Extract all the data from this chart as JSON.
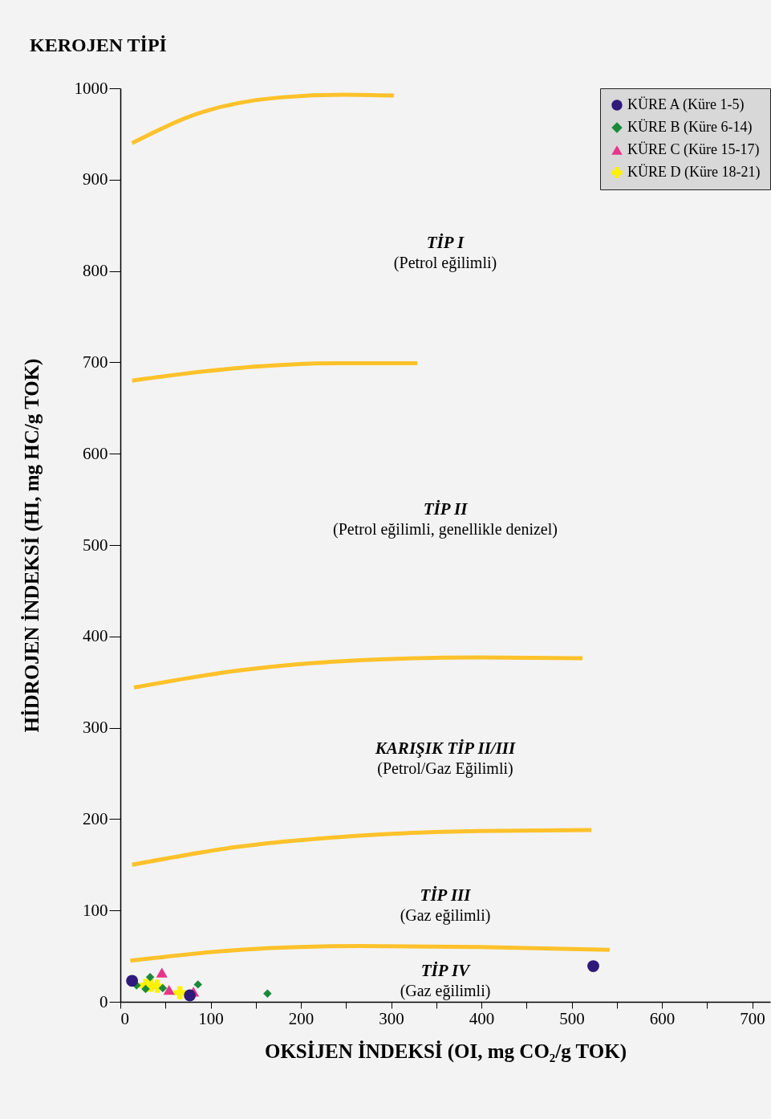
{
  "chart_data": {
    "type": "scatter",
    "title": "KEROJEN TİPİ",
    "xlabel": "OKSİJEN İNDEKSİ (OI, mg CO₂/g TOK)",
    "ylabel": "HİDROJEN İNDEKSİ (HI, mg HC/g TOK)",
    "xlim": [
      0,
      720
    ],
    "ylim": [
      0,
      1000
    ],
    "xticks": [
      0,
      {
        "value": 50,
        "label": null
      },
      100,
      {
        "value": 150,
        "label": null
      },
      200,
      {
        "value": 250,
        "label": null
      },
      300,
      {
        "value": 350,
        "label": null
      },
      400,
      {
        "value": 450,
        "label": null
      },
      500,
      {
        "value": 550,
        "label": null
      },
      600,
      {
        "value": 650,
        "label": null
      },
      700
    ],
    "yticks": [
      0,
      100,
      200,
      300,
      400,
      500,
      600,
      700,
      800,
      900,
      1000
    ],
    "grid": false,
    "legend": "top right",
    "series": [
      {
        "type": "line",
        "color": "#fdc12a",
        "x": [
          13,
          88,
          177,
          248,
          303
        ],
        "values": [
          940,
          973,
          990,
          993,
          992
        ]
      },
      {
        "type": "line",
        "color": "#fdc12a",
        "x": [
          13,
          133,
          239,
          329
        ],
        "values": [
          680,
          694,
          699,
          699
        ]
      },
      {
        "type": "line",
        "color": "#fdc12a",
        "x": [
          15,
          133,
          265,
          398,
          512
        ],
        "values": [
          344,
          363,
          374,
          377,
          376
        ]
      },
      {
        "type": "line",
        "color": "#fdc12a",
        "x": [
          13,
          133,
          265,
          398,
          522
        ],
        "values": [
          150,
          170,
          182,
          187,
          188
        ]
      },
      {
        "type": "line",
        "color": "#fdc12a",
        "x": [
          11,
          133,
          265,
          398,
          542
        ],
        "values": [
          45,
          57,
          61,
          60,
          57
        ]
      },
      {
        "name": "KÜRE A (Küre 1-5)",
        "color": "#2e1a7a",
        "marker": "circle",
        "x": [
          13,
          77,
          524
        ],
        "values": [
          23,
          7,
          39
        ]
      },
      {
        "name": "KÜRE B (Küre 6-14)",
        "color": "#1a8a3a",
        "marker": "diamond",
        "x": [
          18,
          33,
          28,
          47,
          86,
          163
        ],
        "values": [
          18,
          27,
          14,
          15,
          19,
          9
        ]
      },
      {
        "name": "KÜRE C (Küre 15-17)",
        "color": "#e8338a",
        "marker": "triangle",
        "x": [
          46,
          54,
          81
        ],
        "values": [
          32,
          13,
          11
        ]
      },
      {
        "name": "KÜRE D (Küre 18-21)",
        "color": "#fff200",
        "marker": "cross",
        "x": [
          28,
          34,
          41,
          66
        ],
        "values": [
          18,
          18,
          17,
          10
        ]
      }
    ],
    "annotations": [
      "TİP I",
      "(Petrol eğilimli)",
      "TİP II",
      "(Petrol eğilimli, genellikle denizel)",
      "KARIŞIK TİP II/III",
      "(Petrol/Gaz Eğilimli)",
      "TİP III",
      "(Gaz eğilimli)",
      "TİP IV",
      "(Gaz eğilimli)"
    ]
  }
}
